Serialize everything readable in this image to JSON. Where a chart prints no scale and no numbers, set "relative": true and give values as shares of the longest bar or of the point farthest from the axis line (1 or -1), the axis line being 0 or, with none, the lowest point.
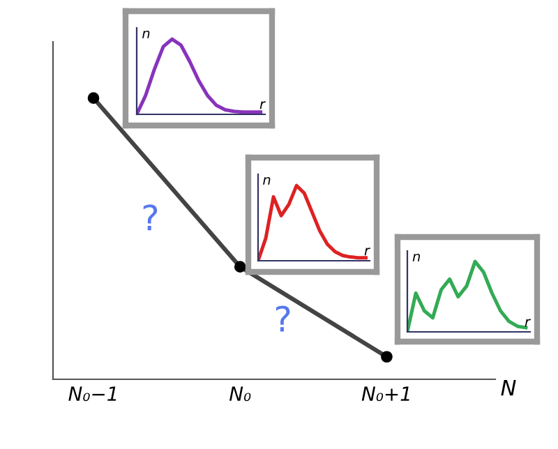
{
  "chart_data": [
    {
      "type": "line",
      "xlabel": "N",
      "relative": true,
      "categories": [
        "N₀−1",
        "N₀",
        "N₀+1"
      ],
      "series": [
        {
          "color": "#444444",
          "values": [
            1,
            0.4,
            0.08
          ]
        }
      ],
      "marker": "circle",
      "line_style": "solid",
      "tick_labels": "x",
      "annotations": [
        "?",
        "?"
      ]
    },
    {
      "type": "line",
      "xlabel": "r",
      "ylabel": "n",
      "relative": true,
      "tick_labels": false,
      "categories": [
        null,
        null,
        null,
        null,
        null,
        null,
        null,
        null,
        null,
        null,
        null,
        null,
        null,
        null,
        null
      ],
      "series": [
        {
          "color": "#8833bb",
          "values": [
            0,
            0.25,
            0.6,
            0.9,
            1,
            0.92,
            0.7,
            0.45,
            0.25,
            0.12,
            0.06,
            0.04,
            0.03,
            0.03,
            0.03
          ]
        }
      ]
    },
    {
      "type": "line",
      "xlabel": "r",
      "ylabel": "n",
      "relative": true,
      "tick_labels": false,
      "categories": [
        null,
        null,
        null,
        null,
        null,
        null,
        null,
        null,
        null,
        null,
        null,
        null,
        null,
        null,
        null
      ],
      "series": [
        {
          "color": "#dd2222",
          "values": [
            0,
            0.3,
            0.85,
            0.6,
            0.75,
            1,
            0.9,
            0.65,
            0.4,
            0.22,
            0.12,
            0.07,
            0.05,
            0.04,
            0.04
          ]
        }
      ]
    },
    {
      "type": "line",
      "xlabel": "r",
      "ylabel": "n",
      "relative": true,
      "tick_labels": false,
      "categories": [
        null,
        null,
        null,
        null,
        null,
        null,
        null,
        null,
        null,
        null,
        null,
        null,
        null,
        null,
        null
      ],
      "series": [
        {
          "color": "#33aa55",
          "values": [
            0,
            0.55,
            0.3,
            0.2,
            0.6,
            0.75,
            0.5,
            0.65,
            1,
            0.85,
            0.55,
            0.3,
            0.15,
            0.08,
            0.06
          ]
        }
      ]
    }
  ]
}
